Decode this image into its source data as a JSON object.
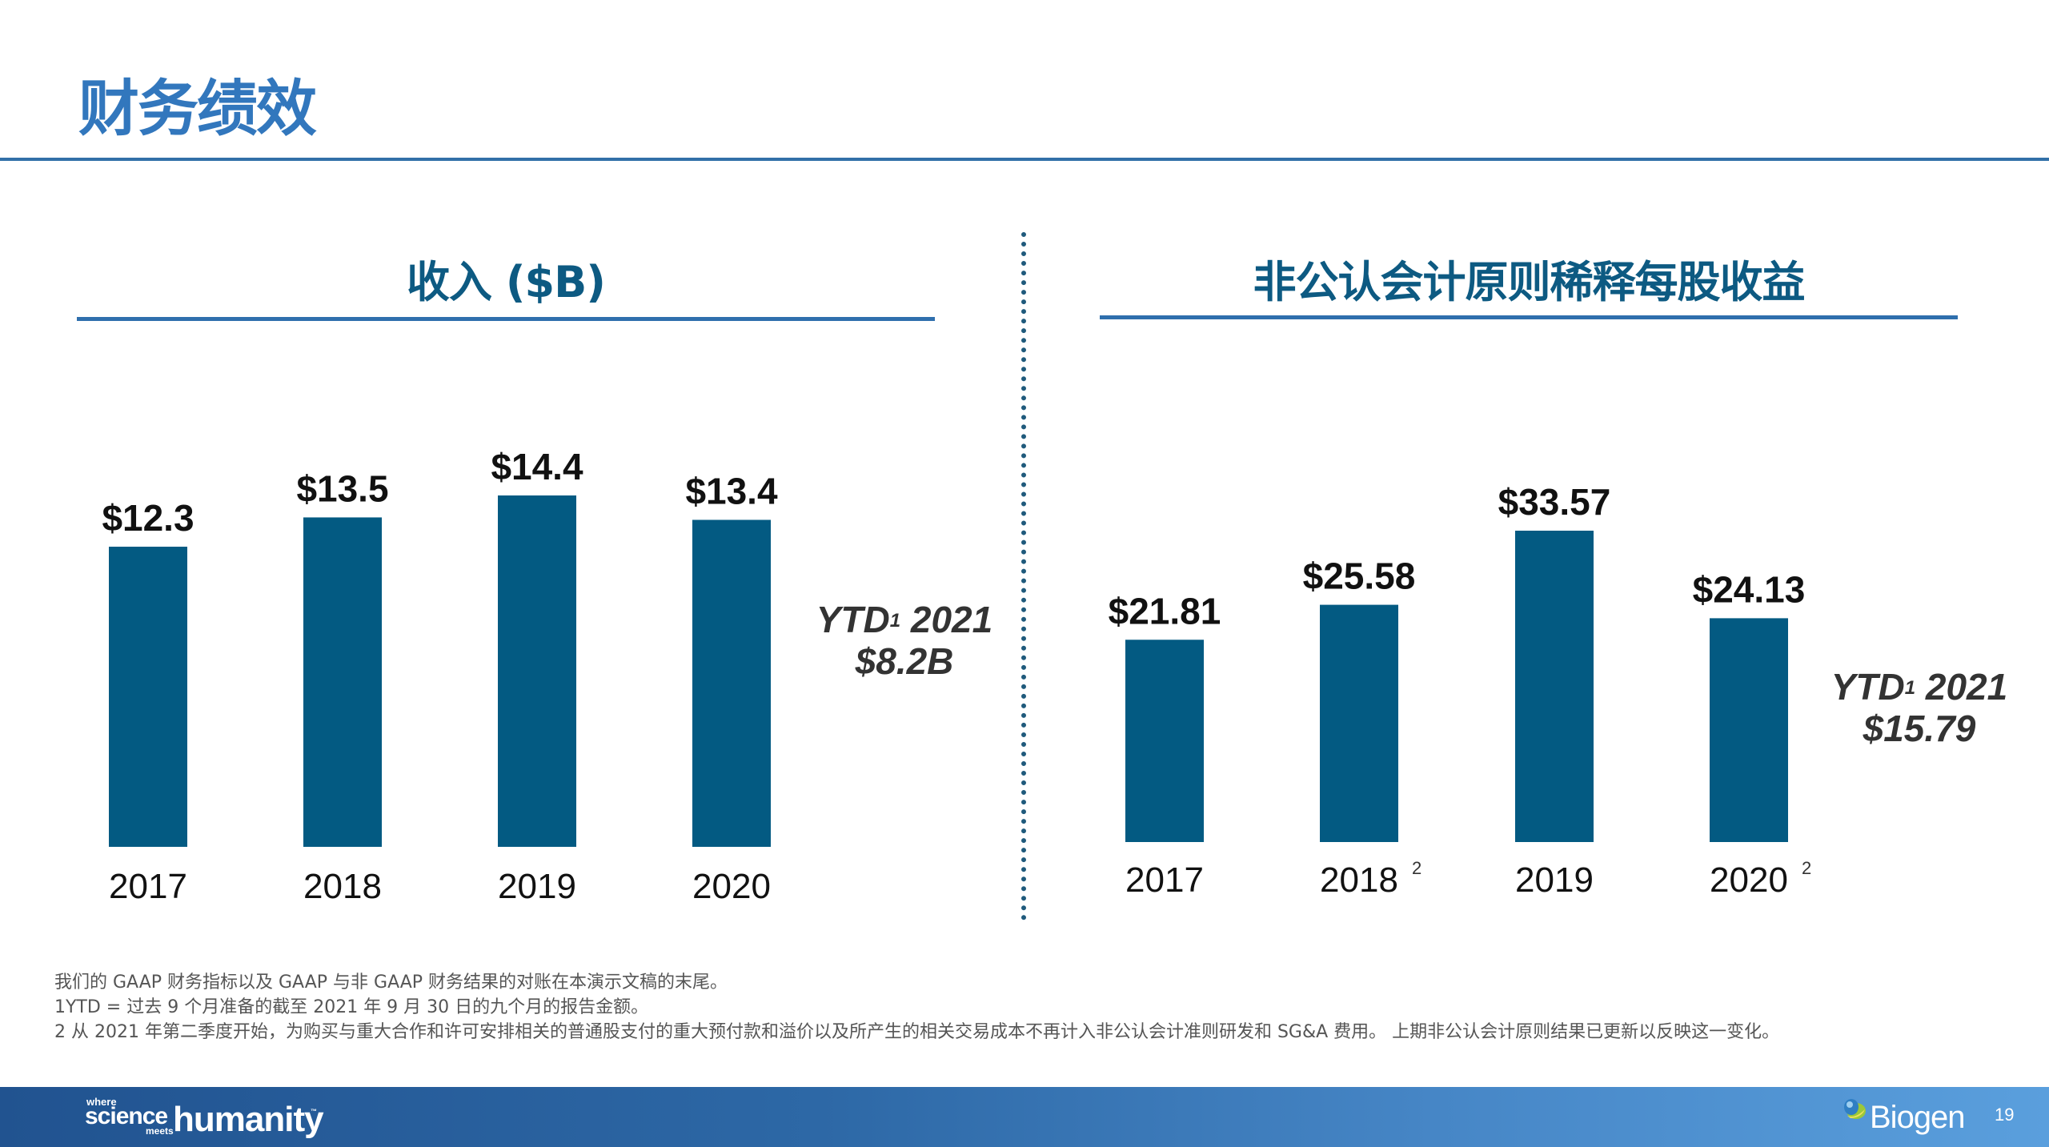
{
  "slide": {
    "title": "财务绩效",
    "page_number": "19"
  },
  "revenue_panel": {
    "title": "收入 ($B)",
    "ytd_line1": "YTD",
    "ytd_sup": "1",
    "ytd_line1_rest": " 2021",
    "ytd_line2": "$8.2B"
  },
  "eps_panel": {
    "title": "非公认会计原则稀释每股收益",
    "ytd_line1": "YTD",
    "ytd_sup": "1",
    "ytd_line1_rest": " 2021",
    "ytd_line2": "$15.79"
  },
  "chart_data": [
    {
      "type": "bar",
      "title": "收入 ($B)",
      "categories": [
        "2017",
        "2018",
        "2019",
        "2020"
      ],
      "category_footnotes": [
        "",
        "",
        "",
        ""
      ],
      "values": [
        12.3,
        13.5,
        14.4,
        13.4
      ],
      "data_labels": [
        "$12.3",
        "$13.5",
        "$14.4",
        "$13.4"
      ],
      "xlabel": "",
      "ylabel": "",
      "ylim": [
        0,
        16
      ],
      "grid": false,
      "bar_color": "#035a82",
      "annotation": "YTD1 2021 $8.2B"
    },
    {
      "type": "bar",
      "title": "非公认会计原则稀释每股收益",
      "categories": [
        "2017",
        "2018",
        "2019",
        "2020"
      ],
      "category_footnotes": [
        "",
        "2",
        "",
        "2"
      ],
      "values": [
        21.81,
        25.58,
        33.57,
        24.13
      ],
      "data_labels": [
        "$21.81",
        "$25.58",
        "$33.57",
        "$24.13"
      ],
      "xlabel": "",
      "ylabel": "",
      "ylim": [
        0,
        36
      ],
      "grid": false,
      "bar_color": "#035a82",
      "annotation": "YTD1 2021 $15.79"
    }
  ],
  "footnotes": [
    "我们的 GAAP 财务指标以及 GAAP 与非 GAAP 财务结果的对账在本演示文稿的末尾。",
    "1YTD = 过去 9 个月准备的截至 2021 年 9 月 30 日的九个月的报告金额。",
    "2 从 2021 年第二季度开始，为购买与重大合作和许可安排相关的普通股支付的重大预付款和溢价以及所产生的相关交易成本不再计入非公认会计准则研发和 SG&A 费用。 上期非公认会计原则结果已更新以反映这一变化。"
  ],
  "footer": {
    "tagline_where": "where",
    "tagline_science": "science",
    "tagline_meets": "meets",
    "tagline_humanity": "humanity",
    "tagline_tm": "™",
    "brand": "Biogen"
  }
}
